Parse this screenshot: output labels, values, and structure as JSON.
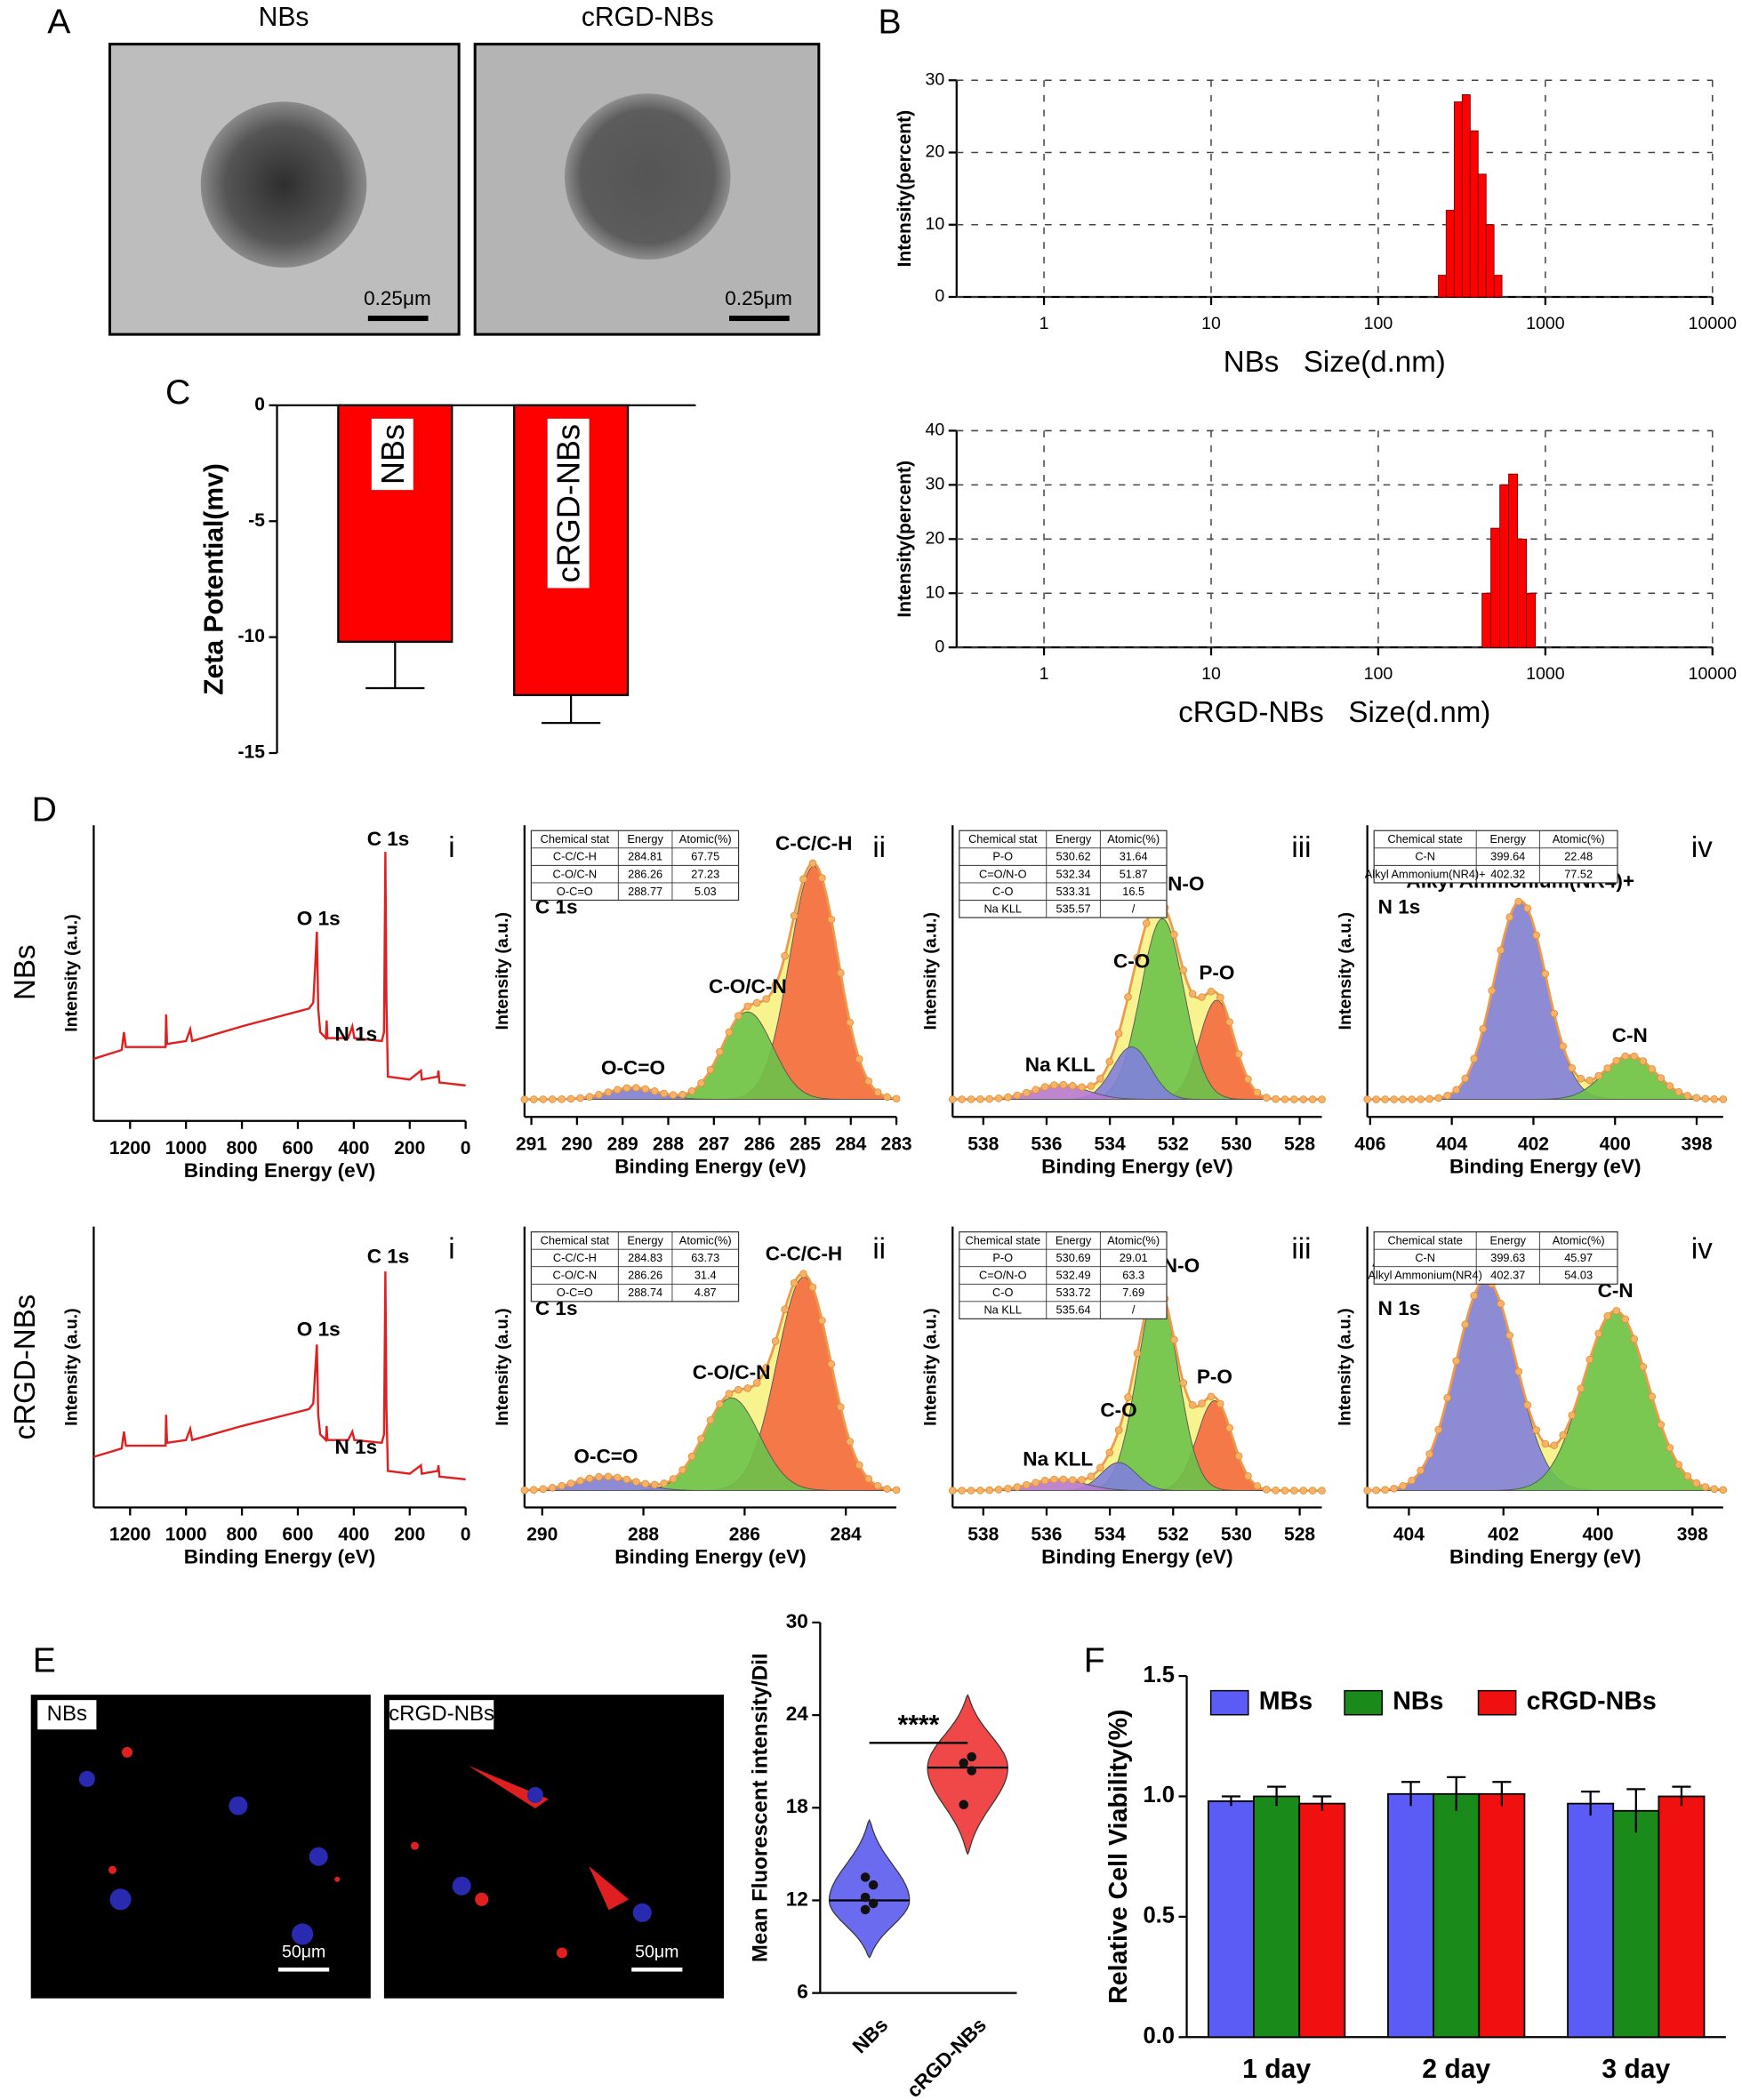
{
  "panel_letters": [
    "A",
    "B",
    "C",
    "D",
    "E",
    "F"
  ],
  "images": {
    "a_titles": [
      "NBs",
      "cRGD-NBs"
    ],
    "a_scale": [
      "0.25μm",
      "0.25μm"
    ],
    "e_labels": [
      "NBs",
      "cRGD-NBs"
    ],
    "e_scale": [
      "50μm",
      "50μm"
    ]
  },
  "xps_rows": [
    "NBs",
    "cRGD-NBs"
  ],
  "chart_data": [
    {
      "type": "histogram",
      "bins": [
        229,
        255,
        285,
        318,
        355,
        396,
        442,
        493,
        550
      ],
      "counts": [
        3,
        12,
        27,
        28,
        23,
        17,
        10,
        3
      ],
      "color": "#ff0000",
      "xscale": "log",
      "xlim": [
        0.3,
        10000
      ],
      "xticks": [
        1,
        10,
        100,
        1000,
        10000
      ],
      "ylim": [
        0,
        30
      ],
      "yticks": [
        0,
        10,
        20,
        30
      ],
      "grid": true,
      "x_label": "NBs   Size(d.nm)",
      "y_label": "Intensity(percent)"
    },
    {
      "type": "histogram",
      "bins": [
        418,
        472,
        534,
        603,
        682,
        771,
        872
      ],
      "counts": [
        10,
        22,
        30,
        32,
        20,
        10
      ],
      "color": "#ff0000",
      "xscale": "log",
      "xlim": [
        0.3,
        10000
      ],
      "xticks": [
        1,
        10,
        100,
        1000,
        10000
      ],
      "ylim": [
        0,
        40
      ],
      "yticks": [
        0,
        10,
        20,
        30,
        40
      ],
      "grid": true,
      "x_label": "cRGD-NBs   Size(d.nm)",
      "y_label": "Intensity(percent)"
    },
    {
      "type": "bar",
      "categories": [
        "NBs",
        "cRGD-NBs"
      ],
      "values": [
        -10.2,
        -12.5
      ],
      "errors": [
        2.0,
        1.2
      ],
      "color": "#ff0000",
      "ylim": [
        -15,
        0
      ],
      "yticks": [
        0,
        -5,
        -10,
        -15
      ],
      "y_label": "Zeta Potential(mv)"
    },
    {
      "type": "line",
      "panel": "i",
      "color": "#e02020",
      "x": [
        1330,
        1230,
        1222,
        1215,
        1100,
        1073,
        1071,
        1068,
        1000,
        985,
        978,
        800,
        600,
        560,
        545,
        538,
        532,
        527,
        520,
        500,
        497,
        494,
        420,
        405,
        398,
        300,
        292,
        287,
        283,
        278,
        200,
        160,
        157,
        100,
        97,
        94,
        0
      ],
      "values": [
        21,
        24,
        30,
        25,
        25,
        25,
        36,
        26,
        27,
        31,
        27,
        32,
        37,
        38,
        40,
        52,
        64,
        38,
        30,
        28,
        34,
        28,
        28,
        32,
        28,
        27,
        30,
        91,
        40,
        15,
        14,
        17,
        14,
        15,
        17,
        13,
        12
      ],
      "xlim": [
        1330,
        0
      ],
      "xticks": [
        1200,
        1000,
        800,
        600,
        400,
        200,
        0
      ],
      "ylim": [
        0,
        100
      ],
      "annotations": [
        {
          "text": "C 1s",
          "x": 277,
          "y": 95
        },
        {
          "text": "O 1s",
          "x": 526,
          "y": 68
        },
        {
          "text": "N 1s",
          "x": 392,
          "y": 29
        }
      ],
      "x_label": "Binding Energy (eV)",
      "y_label": "Intensity (a.u.)"
    },
    {
      "type": "xps-fit",
      "panel": "ii",
      "element": "C 1s",
      "baseline": 6,
      "table": {
        "header": [
          "Chemical stat",
          "Energy",
          "Atomic(%)"
        ],
        "rows": [
          [
            "C-C/C-H",
            284.81,
            67.75
          ],
          [
            "C-O/C-N",
            286.26,
            27.23
          ],
          [
            "O-C=O",
            288.77,
            5.03
          ]
        ]
      },
      "peaks": [
        {
          "name": "C-C/C-H",
          "center": 284.81,
          "height": 80,
          "fwhm": 1.25,
          "color": "#f46a40"
        },
        {
          "name": "C-O/C-N",
          "center": 286.26,
          "height": 30,
          "fwhm": 1.3,
          "color": "#6cc24a"
        },
        {
          "name": "O-C=O",
          "center": 288.77,
          "height": 4,
          "fwhm": 1.3,
          "color": "#7f7fdc"
        }
      ],
      "xlim": [
        291.15,
        283
      ],
      "xticks": [
        291,
        290,
        289,
        288,
        287,
        286,
        285,
        284,
        283
      ],
      "ylim": [
        0,
        100
      ],
      "x_label": "Binding Energy (eV)",
      "y_label": "Intensity (a.u.)"
    },
    {
      "type": "xps-fit",
      "panel": "iii",
      "element": "O 1s",
      "baseline": 6,
      "table": {
        "header": [
          "Chemical stat",
          "Energy",
          "Atomic(%)"
        ],
        "rows": [
          [
            "P-O",
            530.62,
            31.64
          ],
          [
            "C=O/N-O",
            532.34,
            51.87
          ],
          [
            "C-O",
            533.31,
            16.5
          ],
          [
            "Na KLL",
            535.57,
            "/"
          ]
        ]
      },
      "peaks": [
        {
          "name": "P-O",
          "center": 530.62,
          "height": 34,
          "fwhm": 1.3,
          "color": "#f46a40"
        },
        {
          "name": "C=O/N-O",
          "center": 532.34,
          "height": 62,
          "fwhm": 1.6,
          "color": "#6cc24a"
        },
        {
          "name": "C-O",
          "center": 533.31,
          "height": 18,
          "fwhm": 1.4,
          "color": "#7f7fdc"
        },
        {
          "name": "Na KLL",
          "center": 535.57,
          "height": 5,
          "fwhm": 2,
          "color": "#b77ad6"
        }
      ],
      "xlim": [
        538.97,
        527.3
      ],
      "xticks": [
        538,
        536,
        534,
        532,
        530,
        528
      ],
      "ylim": [
        0,
        100
      ],
      "x_label": "Binding Energy (eV)",
      "y_label": "Intensity (a.u.)"
    },
    {
      "type": "xps-fit",
      "panel": "iv",
      "element": "N 1s",
      "baseline": 6,
      "table": {
        "header": [
          "Chemical state",
          "Energy",
          "Atomic(%)"
        ],
        "rows": [
          [
            "C-N",
            399.64,
            22.48
          ],
          [
            "Alkyl Ammonium(NR4)+",
            402.32,
            77.52
          ]
        ]
      },
      "peaks": [
        {
          "name": "Alkyl Ammonium(NR4)+",
          "center": 402.32,
          "height": 68,
          "fwhm": 1.5,
          "color": "#7f7fdc"
        },
        {
          "name": "C-N",
          "center": 399.64,
          "height": 15,
          "fwhm": 1.5,
          "color": "#6cc24a"
        }
      ],
      "xlim": [
        406.07,
        397.35
      ],
      "xticks": [
        406,
        404,
        402,
        400,
        398
      ],
      "ylim": [
        0,
        100
      ],
      "x_label": "Binding Energy (eV)",
      "y_label": "Intensity (a.u.)"
    },
    {
      "type": "line",
      "panel": "i",
      "color": "#e02020",
      "x": [
        1330,
        1230,
        1222,
        1215,
        1100,
        1073,
        1071,
        1068,
        1000,
        985,
        978,
        800,
        600,
        560,
        545,
        538,
        532,
        527,
        520,
        500,
        497,
        494,
        420,
        405,
        398,
        300,
        292,
        287,
        283,
        278,
        200,
        160,
        157,
        100,
        97,
        94,
        0
      ],
      "values": [
        18,
        21,
        27,
        22,
        22,
        22,
        33,
        23,
        24,
        28,
        24,
        29,
        34,
        35,
        37,
        48,
        58,
        33,
        26,
        24,
        29,
        24,
        24,
        27,
        24,
        23,
        26,
        84,
        35,
        13,
        12,
        15,
        12,
        13,
        15,
        11,
        10
      ],
      "xlim": [
        1330,
        0
      ],
      "xticks": [
        1200,
        1000,
        800,
        600,
        400,
        200,
        0
      ],
      "ylim": [
        0,
        100
      ],
      "annotations": [
        {
          "text": "C 1s",
          "x": 277,
          "y": 89
        },
        {
          "text": "O 1s",
          "x": 526,
          "y": 63
        },
        {
          "text": "N 1s",
          "x": 392,
          "y": 21
        }
      ],
      "x_label": "Binding Energy (eV)",
      "y_label": "Intensity (a.u.)"
    },
    {
      "type": "xps-fit",
      "panel": "ii",
      "element": "C 1s",
      "baseline": 6,
      "table": {
        "header": [
          "Chemical stat",
          "Energy",
          "Atomic(%)"
        ],
        "rows": [
          [
            "C-C/C-H",
            284.83,
            63.73
          ],
          [
            "C-O/C-N",
            286.26,
            31.4
          ],
          [
            "O-C=O",
            288.74,
            4.87
          ]
        ]
      },
      "peaks": [
        {
          "name": "C-C/C-H",
          "center": 284.83,
          "height": 76,
          "fwhm": 1.25,
          "color": "#f46a40"
        },
        {
          "name": "C-O/C-N",
          "center": 286.26,
          "height": 33,
          "fwhm": 1.3,
          "color": "#6cc24a"
        },
        {
          "name": "O-C=O",
          "center": 288.74,
          "height": 5,
          "fwhm": 1.4,
          "color": "#7f7fdc"
        }
      ],
      "xlim": [
        290.35,
        283
      ],
      "xticks": [
        290,
        288,
        286,
        284
      ],
      "ylim": [
        0,
        100
      ],
      "x_label": "Binding Energy (eV)",
      "y_label": "Intensity (a.u.)"
    },
    {
      "type": "xps-fit",
      "panel": "iii",
      "element": "O 1s",
      "baseline": 6,
      "table": {
        "header": [
          "Chemical state",
          "Energy",
          "Atomic(%)"
        ],
        "rows": [
          [
            "P-O",
            530.69,
            29.01
          ],
          [
            "C=O/N-O",
            532.49,
            63.3
          ],
          [
            "C-O",
            533.72,
            7.69
          ],
          [
            "Na KLL",
            535.64,
            "/"
          ]
        ]
      },
      "peaks": [
        {
          "name": "P-O",
          "center": 530.69,
          "height": 32,
          "fwhm": 1.3,
          "color": "#f46a40"
        },
        {
          "name": "C=O/N-O",
          "center": 532.49,
          "height": 72,
          "fwhm": 1.5,
          "color": "#6cc24a"
        },
        {
          "name": "C-O",
          "center": 533.72,
          "height": 10,
          "fwhm": 1.3,
          "color": "#7f7fdc"
        },
        {
          "name": "Na KLL",
          "center": 535.64,
          "height": 4,
          "fwhm": 2,
          "color": "#b77ad6"
        }
      ],
      "xlim": [
        538.97,
        527.3
      ],
      "xticks": [
        538,
        536,
        534,
        532,
        530,
        528
      ],
      "ylim": [
        0,
        100
      ],
      "x_label": "Binding Energy (eV)",
      "y_label": "Intensity (a.u.)"
    },
    {
      "type": "xps-fit",
      "panel": "iv",
      "element": "N 1s",
      "baseline": 6,
      "table": {
        "header": [
          "Chemical state",
          "Energy",
          "Atomic(%)"
        ],
        "rows": [
          [
            "C-N",
            399.63,
            45.97
          ],
          [
            "Alkyl Ammonium(NR4)",
            402.37,
            54.03
          ]
        ]
      },
      "peaks": [
        {
          "name": "Alkyl Ammonium(NR4)+",
          "center": 402.37,
          "height": 75,
          "fwhm": 1.5,
          "color": "#7f7fdc"
        },
        {
          "name": "C-N",
          "center": 399.63,
          "height": 64,
          "fwhm": 1.6,
          "color": "#6cc24a"
        }
      ],
      "xlim": [
        404.88,
        397.35
      ],
      "xticks": [
        404,
        402,
        400,
        398
      ],
      "ylim": [
        0,
        100
      ],
      "x_label": "Binding Energy (eV)",
      "y_label": "Intensity (a.u.)"
    },
    {
      "type": "violin",
      "categories": [
        "NBs",
        "cRGD-NBs"
      ],
      "colors": [
        "#6b6bf0",
        "#f04848"
      ],
      "points": [
        [
          11.4,
          11.8,
          12.2,
          13.0,
          13.5
        ],
        [
          18.2,
          20.4,
          20.9,
          21.3
        ]
      ],
      "medians": [
        12,
        20.6
      ],
      "ranges": [
        [
          8.3,
          17.2
        ],
        [
          15,
          25.3
        ]
      ],
      "ylim": [
        6,
        30
      ],
      "yticks": [
        6,
        12,
        18,
        24,
        30
      ],
      "significance": "****",
      "y_label": "Mean Fluorescent intensity/DiI"
    },
    {
      "type": "grouped-bar",
      "categories": [
        "1 day",
        "2 day",
        "3 day"
      ],
      "legend": "top",
      "series": [
        {
          "name": "MBs",
          "color": "#5b5bf5",
          "values": [
            0.98,
            1.01,
            0.97
          ],
          "errors": [
            0.02,
            0.05,
            0.05
          ]
        },
        {
          "name": "NBs",
          "color": "#1a8a1a",
          "values": [
            1.0,
            1.01,
            0.94
          ],
          "errors": [
            0.04,
            0.07,
            0.09
          ]
        },
        {
          "name": "cRGD-NBs",
          "color": "#f01010",
          "values": [
            0.97,
            1.01,
            1.0
          ],
          "errors": [
            0.03,
            0.05,
            0.04
          ]
        }
      ],
      "ylim": [
        0,
        1.5
      ],
      "yticks": [
        {
          "value": 0,
          "label": "0.0"
        },
        0.5,
        {
          "value": 1,
          "label": "1.0"
        },
        1.5
      ],
      "y_label": "Relative Cell Viability(%)"
    }
  ]
}
